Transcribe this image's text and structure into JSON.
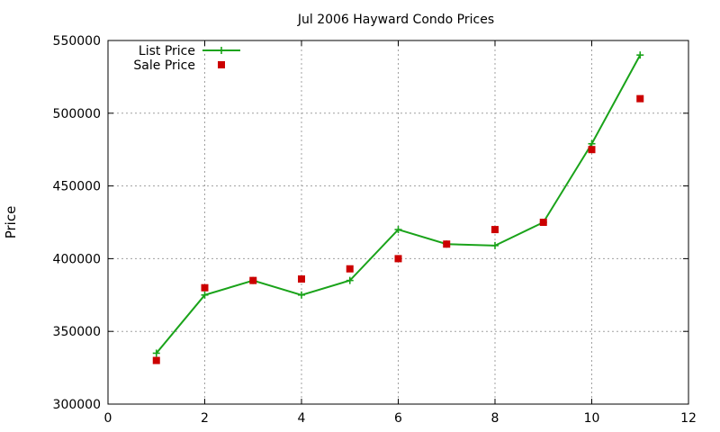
{
  "chart_data": {
    "type": "line",
    "title": "Jul 2006 Hayward Condo Prices",
    "xlabel": "",
    "ylabel": "Price",
    "xlim": [
      0,
      12
    ],
    "ylim": [
      300000,
      550000
    ],
    "xticks": [
      0,
      2,
      4,
      6,
      8,
      10,
      12
    ],
    "yticks": [
      300000,
      350000,
      400000,
      450000,
      500000,
      550000
    ],
    "grid": true,
    "legend_position": "top-left",
    "series": [
      {
        "name": "List Price",
        "style": "line+cross",
        "color": "#1aa31a",
        "x": [
          1,
          2,
          3,
          4,
          5,
          6,
          7,
          8,
          9,
          10,
          11
        ],
        "y": [
          335000,
          375000,
          385000,
          375000,
          385000,
          420000,
          410000,
          409000,
          425000,
          479000,
          540000
        ]
      },
      {
        "name": "Sale Price",
        "style": "square-points",
        "color": "#cc0000",
        "x": [
          1,
          2,
          3,
          4,
          5,
          6,
          7,
          8,
          9,
          10,
          11
        ],
        "y": [
          330000,
          380000,
          385000,
          386000,
          393000,
          400000,
          410000,
          420000,
          425000,
          475000,
          510000
        ]
      }
    ]
  }
}
